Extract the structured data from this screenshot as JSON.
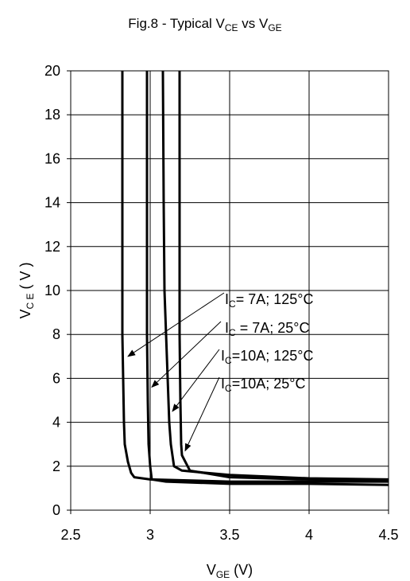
{
  "chart_data": {
    "type": "line",
    "title": {
      "main": "Fig.8 - Typical V",
      "sub1": "CE",
      "mid": " vs V",
      "sub2": "GE"
    },
    "xlabel": {
      "main": "V",
      "sub": "GE",
      "unit": " (V)"
    },
    "ylabel": {
      "main": "V",
      "sub": "C E",
      "unit": " ( V )"
    },
    "xlim": [
      2.5,
      4.5
    ],
    "ylim": [
      0,
      20
    ],
    "xticks": [
      "2.5",
      "3",
      "3.5",
      "4",
      "4.5"
    ],
    "xtick_values": [
      2.5,
      3.0,
      3.5,
      4.0,
      4.5
    ],
    "yticks": [
      "0",
      "2",
      "4",
      "6",
      "8",
      "10",
      "12",
      "14",
      "16",
      "18",
      "20"
    ],
    "ytick_values": [
      0,
      2,
      4,
      6,
      8,
      10,
      12,
      14,
      16,
      18,
      20
    ],
    "grid": true,
    "series": [
      {
        "name": {
          "pre": "I",
          "sub": "C",
          "post": "= 7A; 125°C"
        },
        "x": [
          2.825,
          2.825,
          2.83,
          2.835,
          2.84,
          2.86,
          2.88,
          2.9,
          3.0,
          3.5,
          4.0,
          4.5
        ],
        "y": [
          20,
          8,
          6,
          4,
          3,
          2.2,
          1.7,
          1.5,
          1.4,
          1.3,
          1.3,
          1.3
        ]
      },
      {
        "name": {
          "pre": "I",
          "sub": "C",
          "post": " = 7A;  25°C"
        },
        "x": [
          2.98,
          2.98,
          2.985,
          2.99,
          3.0,
          3.01,
          3.1,
          3.5,
          4.0,
          4.5
        ],
        "y": [
          20,
          8,
          5,
          3,
          2,
          1.4,
          1.3,
          1.2,
          1.2,
          1.15
        ]
      },
      {
        "name": {
          "pre": "I",
          "sub": "C",
          "post": "=10A; 125°C"
        },
        "x": [
          3.08,
          3.085,
          3.09,
          3.1,
          3.11,
          3.12,
          3.13,
          3.15,
          3.2,
          3.5,
          4.0,
          4.5
        ],
        "y": [
          20,
          14,
          10,
          8,
          6,
          4,
          3,
          2,
          1.8,
          1.6,
          1.45,
          1.4
        ]
      },
      {
        "name": {
          "pre": "I",
          "sub": "C",
          "post": "=10A;  25°C"
        },
        "x": [
          3.185,
          3.185,
          3.19,
          3.195,
          3.2,
          3.25,
          3.5,
          4.0,
          4.5
        ],
        "y": [
          20,
          8,
          5,
          3,
          2.5,
          1.8,
          1.5,
          1.4,
          1.35
        ]
      }
    ],
    "annotation_arrow_targets": [
      {
        "x": 2.86,
        "y": 7.0
      },
      {
        "x": 3.01,
        "y": 5.6
      },
      {
        "x": 3.14,
        "y": 4.5
      },
      {
        "x": 3.22,
        "y": 2.7
      }
    ]
  }
}
